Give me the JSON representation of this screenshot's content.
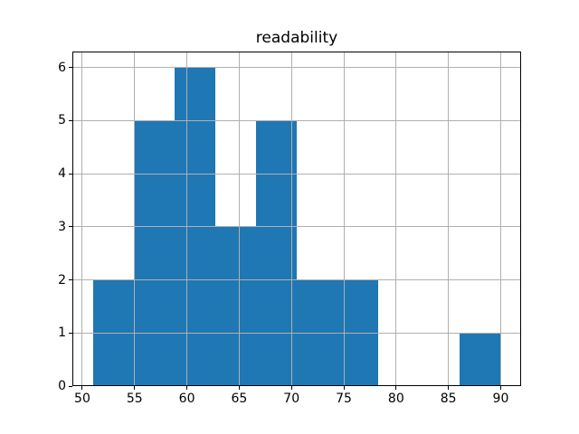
{
  "figure": {
    "background": "#ffffff"
  },
  "chart_data": {
    "type": "bar",
    "subtype": "histogram",
    "title": "readability",
    "xlabel": "",
    "ylabel": "",
    "bar_color": "#1f77b4",
    "grid_color": "#b0b0b0",
    "spine_color": "#000000",
    "grid": true,
    "grid_above_bars": true,
    "bin_edges": [
      51.0,
      54.9,
      58.8,
      62.7,
      66.6,
      70.5,
      74.4,
      78.3,
      82.2,
      86.1,
      90.0
    ],
    "counts": [
      2,
      5,
      6,
      3,
      5,
      2,
      2,
      0,
      0,
      1
    ],
    "x_tick_values": [
      50,
      55,
      60,
      65,
      70,
      75,
      80,
      85,
      90
    ],
    "x_tick_labels": [
      "50",
      "55",
      "60",
      "65",
      "70",
      "75",
      "80",
      "85",
      "90"
    ],
    "y_tick_values": [
      0,
      1,
      2,
      3,
      4,
      5,
      6
    ],
    "y_tick_labels": [
      "0",
      "1",
      "2",
      "3",
      "4",
      "5",
      "6"
    ],
    "xlim": [
      49.05,
      91.95
    ],
    "ylim": [
      0,
      6.3
    ],
    "legend": null
  }
}
